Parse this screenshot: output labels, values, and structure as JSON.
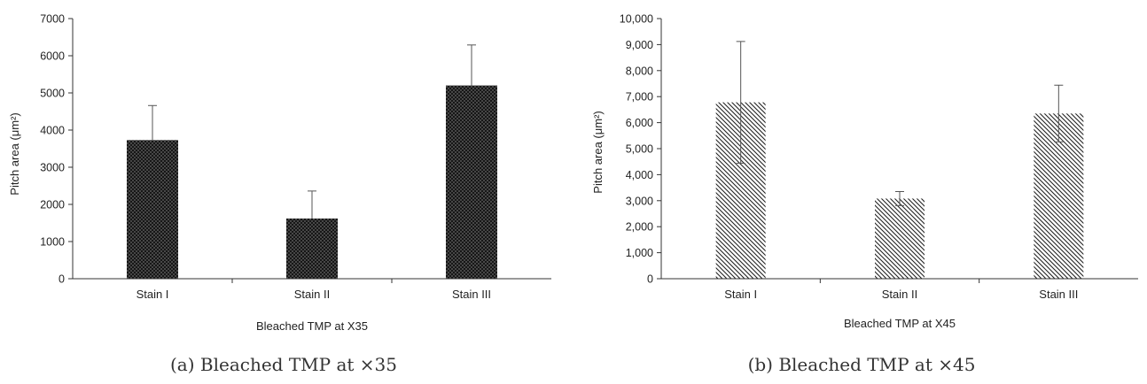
{
  "chart_data": [
    {
      "type": "bar",
      "categories": [
        "Stain I",
        "Stain II",
        "Stain III"
      ],
      "values": [
        3730,
        1620,
        5200
      ],
      "error_plus": [
        930,
        740,
        1090
      ],
      "ylim": [
        0,
        7000
      ],
      "yticks": [
        0,
        1000,
        2000,
        3000,
        4000,
        5000,
        6000,
        7000
      ],
      "ytick_labels": [
        "0",
        "1000",
        "2000",
        "3000",
        "4000",
        "5000",
        "6000",
        "7000"
      ],
      "xlabel": "Bleached TMP at X35",
      "ylabel": "Pitch area  (μm²)",
      "caption": "(a) Bleached TMP at ×35",
      "bar_pattern": "crosshatch",
      "bar_color": "#222222",
      "grid": false
    },
    {
      "type": "bar",
      "categories": [
        "Stain I",
        "Stain II",
        "Stain III"
      ],
      "values": [
        6780,
        3080,
        6350
      ],
      "error_plus": [
        2340,
        270,
        1090
      ],
      "error_minus": [
        2340,
        270,
        1090
      ],
      "ylim": [
        0,
        10000
      ],
      "yticks": [
        0,
        1000,
        2000,
        3000,
        4000,
        5000,
        6000,
        7000,
        8000,
        9000,
        10000
      ],
      "ytick_labels": [
        "0",
        "1,000",
        "2,000",
        "3,000",
        "4,000",
        "5,000",
        "6,000",
        "7,000",
        "8,000",
        "9,000",
        "10,000"
      ],
      "xlabel": "Bleached TMP at X45",
      "ylabel": "Pitch area  (μm²)",
      "caption": "(b) Bleached TMP at ×45",
      "bar_pattern": "diagonal-hatch",
      "bar_color": "#222222",
      "grid": false
    }
  ]
}
